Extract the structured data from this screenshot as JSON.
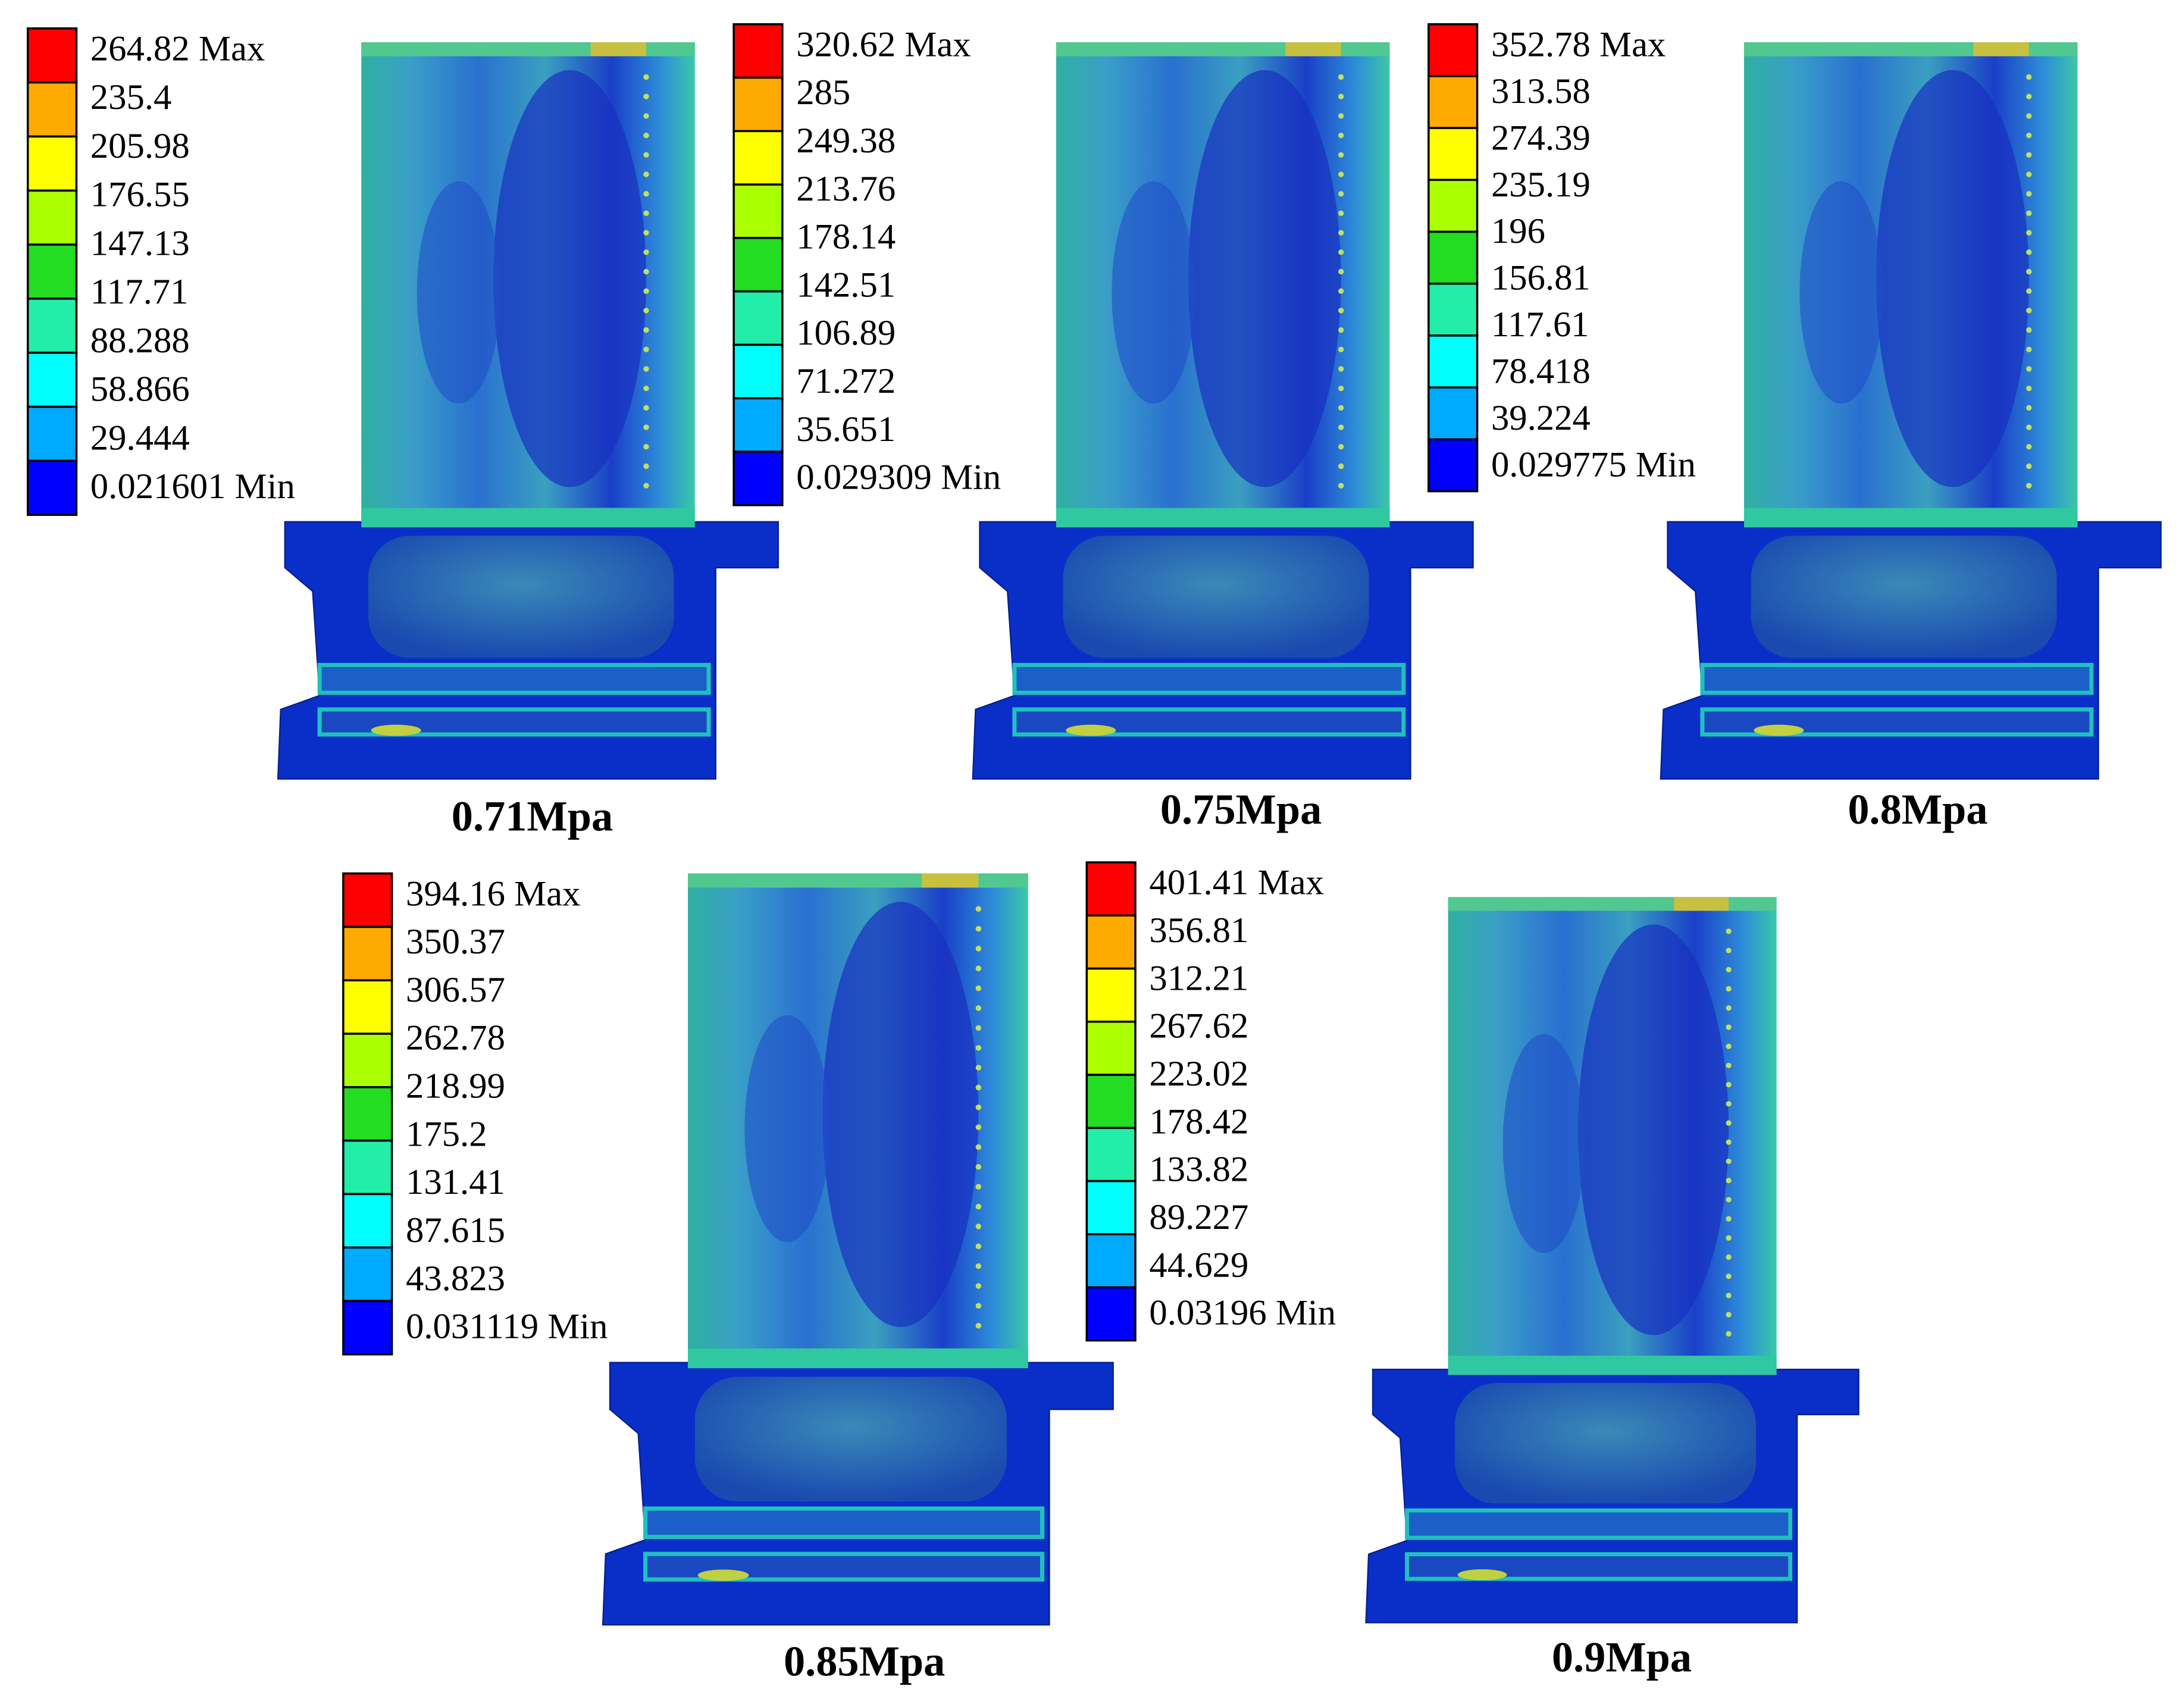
{
  "panels": [
    {
      "legend": [
        "264.82 Max",
        "235.4",
        "205.98",
        "176.55",
        "147.13",
        "117.71",
        "88.288",
        "58.866",
        "29.444",
        "0.021601 Min"
      ],
      "caption": "0.71Mpa"
    },
    {
      "legend": [
        "320.62 Max",
        "285",
        "249.38",
        "213.76",
        "178.14",
        "142.51",
        "106.89",
        "71.272",
        "35.651",
        "0.029309 Min"
      ],
      "caption": "0.75Mpa"
    },
    {
      "legend": [
        "352.78 Max",
        "313.58",
        "274.39",
        "235.19",
        "196",
        "156.81",
        "117.61",
        "78.418",
        "39.224",
        "0.029775 Min"
      ],
      "caption": "0.8Mpa"
    },
    {
      "legend": [
        "394.16 Max",
        "350.37",
        "306.57",
        "262.78",
        "218.99",
        "175.2",
        "131.41",
        "87.615",
        "43.823",
        "0.031119 Min"
      ],
      "caption": "0.85Mpa"
    },
    {
      "legend": [
        "401.41 Max",
        "356.81",
        "312.21",
        "267.62",
        "223.02",
        "178.42",
        "133.82",
        "89.227",
        "44.629",
        "0.03196 Min"
      ],
      "caption": "0.9Mpa"
    }
  ]
}
